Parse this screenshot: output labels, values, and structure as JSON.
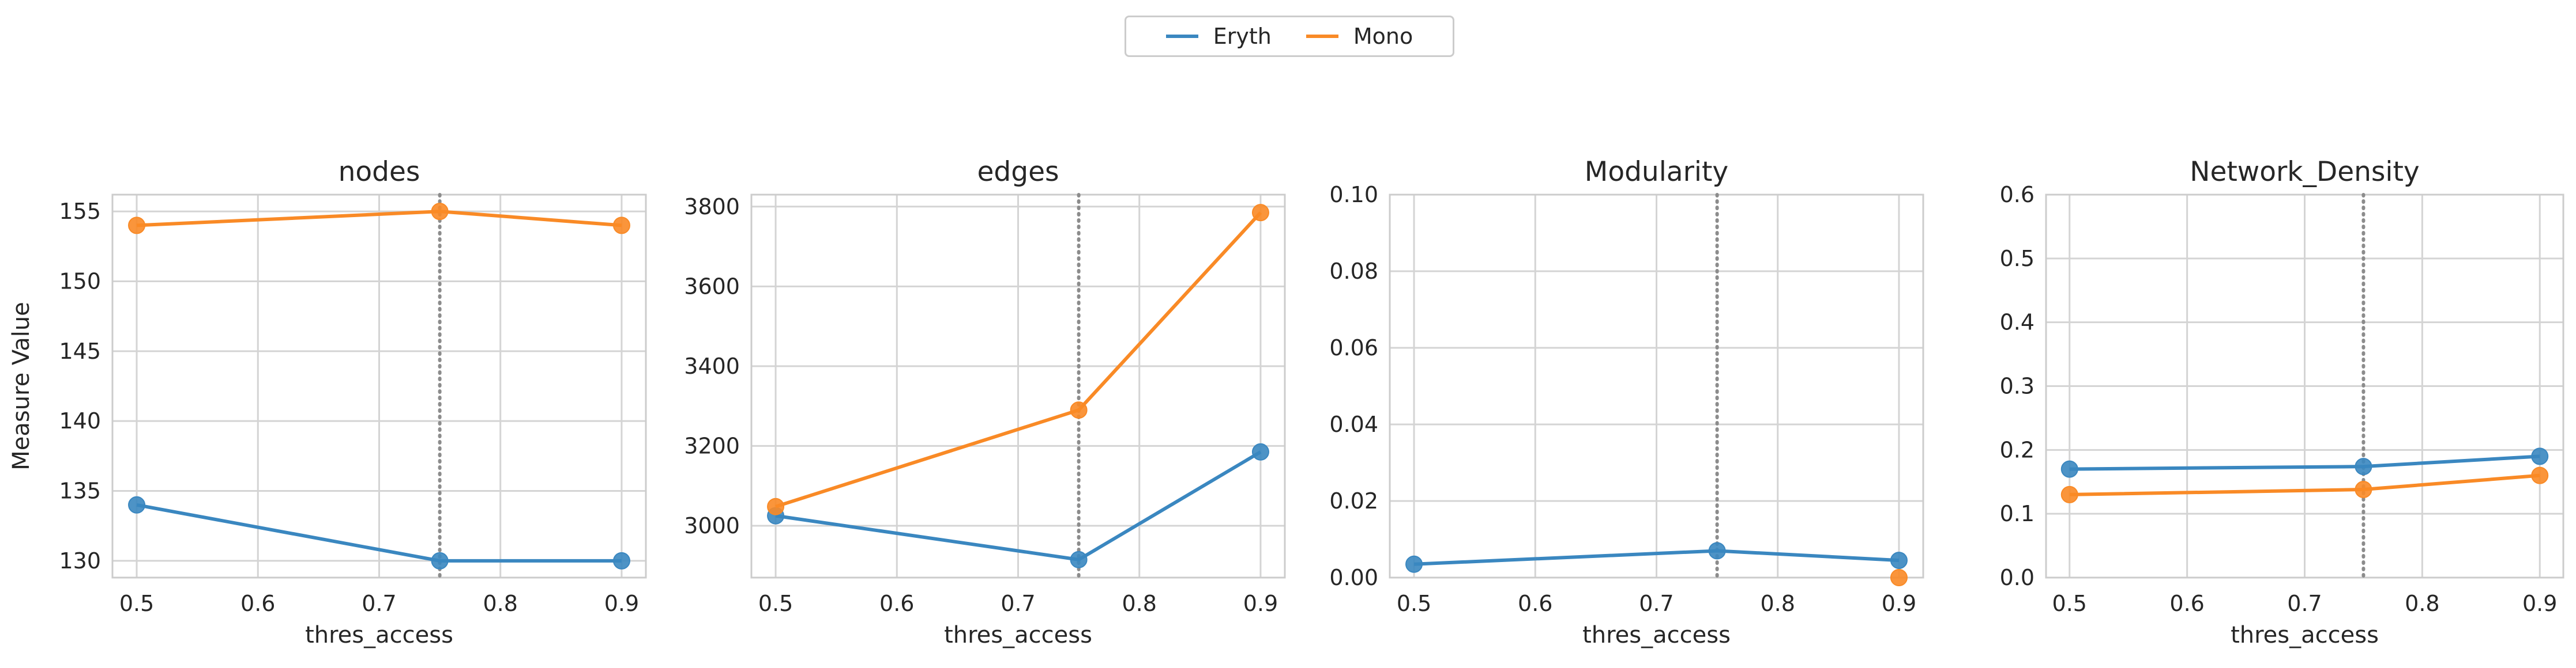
{
  "legend": {
    "items": [
      {
        "label": "Eryth",
        "color": "#3a87c0"
      },
      {
        "label": "Mono",
        "color": "#f98a26"
      }
    ],
    "placement": "top-center"
  },
  "chart_data": [
    {
      "type": "line",
      "title": "nodes",
      "xlabel": "thres_access",
      "ylabel": "Measure Value",
      "xlim": [
        0.48,
        0.92
      ],
      "ylim": [
        128.8,
        156.2
      ],
      "xticks": [
        0.5,
        0.6,
        0.7,
        0.8,
        0.9
      ],
      "xtick_labels": [
        "0.5",
        "0.6",
        "0.7",
        "0.8",
        "0.9"
      ],
      "yticks": [
        130,
        135,
        140,
        145,
        150,
        155
      ],
      "ytick_labels": [
        "130",
        "135",
        "140",
        "145",
        "150",
        "155"
      ],
      "vline_x": 0.75,
      "grid": true,
      "series": [
        {
          "name": "Eryth",
          "x": [
            0.5,
            0.75,
            0.9
          ],
          "y": [
            134,
            130,
            130
          ]
        },
        {
          "name": "Mono",
          "x": [
            0.5,
            0.75,
            0.9
          ],
          "y": [
            154,
            155,
            154
          ]
        }
      ]
    },
    {
      "type": "line",
      "title": "edges",
      "xlabel": "thres_access",
      "ylabel": "",
      "xlim": [
        0.48,
        0.92
      ],
      "ylim": [
        2870,
        3830
      ],
      "xticks": [
        0.5,
        0.6,
        0.7,
        0.8,
        0.9
      ],
      "xtick_labels": [
        "0.5",
        "0.6",
        "0.7",
        "0.8",
        "0.9"
      ],
      "yticks": [
        3000,
        3200,
        3400,
        3600,
        3800
      ],
      "ytick_labels": [
        "3000",
        "3200",
        "3400",
        "3600",
        "3800"
      ],
      "vline_x": 0.75,
      "grid": true,
      "series": [
        {
          "name": "Eryth",
          "x": [
            0.5,
            0.75,
            0.9
          ],
          "y": [
            3025,
            2915,
            3185
          ]
        },
        {
          "name": "Mono",
          "x": [
            0.5,
            0.75,
            0.9
          ],
          "y": [
            3048,
            3290,
            3785
          ]
        }
      ]
    },
    {
      "type": "line",
      "title": "Modularity",
      "xlabel": "thres_access",
      "ylabel": "",
      "xlim": [
        0.48,
        0.92
      ],
      "ylim": [
        0,
        0.1
      ],
      "xticks": [
        0.5,
        0.6,
        0.7,
        0.8,
        0.9
      ],
      "xtick_labels": [
        "0.5",
        "0.6",
        "0.7",
        "0.8",
        "0.9"
      ],
      "yticks": [
        0,
        0.02,
        0.04,
        0.06,
        0.08,
        0.1
      ],
      "ytick_labels": [
        "0.00",
        "0.02",
        "0.04",
        "0.06",
        "0.08",
        "0.10"
      ],
      "vline_x": 0.75,
      "grid": true,
      "series": [
        {
          "name": "Eryth",
          "x": [
            0.5,
            0.75,
            0.9
          ],
          "y": [
            0.0035,
            0.007,
            0.0045
          ]
        },
        {
          "name": "Mono",
          "x": [
            0.9
          ],
          "y": [
            0.0
          ]
        }
      ]
    },
    {
      "type": "line",
      "title": "Network_Density",
      "xlabel": "thres_access",
      "ylabel": "",
      "xlim": [
        0.48,
        0.92
      ],
      "ylim": [
        0,
        0.6
      ],
      "xticks": [
        0.5,
        0.6,
        0.7,
        0.8,
        0.9
      ],
      "xtick_labels": [
        "0.5",
        "0.6",
        "0.7",
        "0.8",
        "0.9"
      ],
      "yticks": [
        0,
        0.1,
        0.2,
        0.3,
        0.4,
        0.5,
        0.6
      ],
      "ytick_labels": [
        "0.0",
        "0.1",
        "0.2",
        "0.3",
        "0.4",
        "0.5",
        "0.6"
      ],
      "vline_x": 0.75,
      "grid": true,
      "series": [
        {
          "name": "Eryth",
          "x": [
            0.5,
            0.75,
            0.9
          ],
          "y": [
            0.17,
            0.174,
            0.19
          ]
        },
        {
          "name": "Mono",
          "x": [
            0.5,
            0.75,
            0.9
          ],
          "y": [
            0.13,
            0.138,
            0.16
          ]
        }
      ]
    }
  ]
}
